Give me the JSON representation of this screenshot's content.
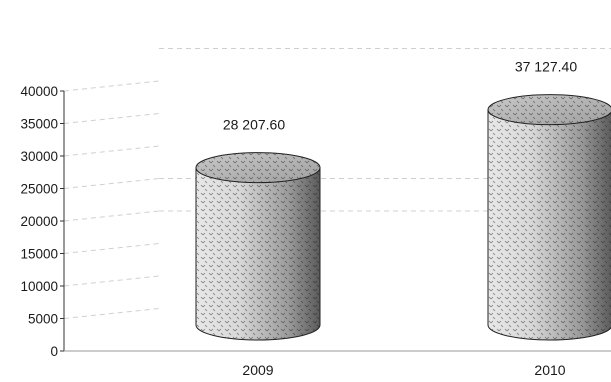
{
  "chart_data": {
    "type": "bar",
    "style": "3d-cylinder",
    "categories": [
      "2009",
      "2010"
    ],
    "values": [
      28207.6,
      37127.4
    ],
    "value_labels": [
      "28 207.60",
      "37 127.40"
    ],
    "yticks": [
      "0",
      "5000",
      "10000",
      "15000",
      "20000",
      "25000",
      "30000",
      "35000",
      "40000"
    ],
    "ylim": [
      0,
      40000
    ],
    "title": "",
    "xlabel": "",
    "ylabel": "",
    "grid": true,
    "legend": "none",
    "colors": {
      "bar_light": "#f2f2f2",
      "bar_dark": "#5a5a5a",
      "grid": "#d0d0d0",
      "axis": "#333333"
    }
  }
}
